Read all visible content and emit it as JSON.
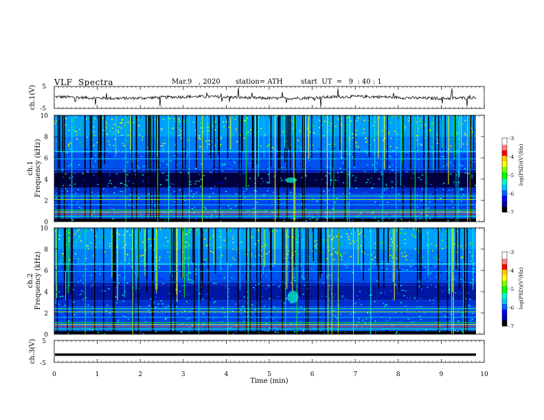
{
  "header": {
    "title": "VLF  Spectra",
    "date": "Mar.9   , 2020",
    "station": "station= ATH",
    "start": "start  UT  =   9  : 40 : 1"
  },
  "chart_data": [
    {
      "type": "line",
      "name": "ch1-waveform",
      "ylabel": "ch.1(V)",
      "ylim": [
        -5,
        5
      ],
      "yticks": [
        "5",
        "-5"
      ],
      "xlim": [
        0,
        10
      ],
      "baseline": 0,
      "line_color": "#000000"
    },
    {
      "type": "heatmap",
      "name": "ch1-spectrogram",
      "ylabel_top": "ch.1",
      "ylabel": "Frequency  (kHz)",
      "ylim": [
        0,
        10
      ],
      "yticks": [
        "0",
        "2",
        "4",
        "6",
        "8",
        "10"
      ],
      "xlim": [
        0,
        10
      ],
      "colorbar": {
        "label": "log(PSD)(V²/Hz)",
        "range": [
          -7,
          -3
        ],
        "ticks": [
          "-3",
          "-4",
          "-5",
          "-6",
          "-7"
        ],
        "colors": [
          "#000000",
          "#0000ff",
          "#00c8ff",
          "#00ff00",
          "#ffff00",
          "#ff0000",
          "#ffffff"
        ]
      }
    },
    {
      "type": "heatmap",
      "name": "ch2-spectrogram",
      "ylabel_top": "ch.2",
      "ylabel": "Frequency  (kHz)",
      "ylim": [
        0,
        10
      ],
      "yticks": [
        "0",
        "2",
        "4",
        "6",
        "8",
        "10"
      ],
      "xlim": [
        0,
        10
      ],
      "colorbar": {
        "label": "log(PSD)(V²/Hz)",
        "range": [
          -7,
          -3
        ],
        "ticks": [
          "-3",
          "-4",
          "-5",
          "-6",
          "-7"
        ],
        "colors": [
          "#000000",
          "#0000ff",
          "#00c8ff",
          "#00ff00",
          "#ffff00",
          "#ff0000",
          "#ffffff"
        ]
      }
    },
    {
      "type": "line",
      "name": "ch3-waveform",
      "ylabel": "ch.3(V)",
      "ylim": [
        -5,
        5
      ],
      "yticks": [
        "5",
        "-5"
      ],
      "xlim": [
        0,
        10
      ],
      "xticks": [
        "0",
        "1",
        "2",
        "3",
        "4",
        "5",
        "6",
        "7",
        "8",
        "9",
        "10"
      ],
      "xlabel": "Time  (min)",
      "baseline": -1.5,
      "line_color": "#000000"
    }
  ]
}
